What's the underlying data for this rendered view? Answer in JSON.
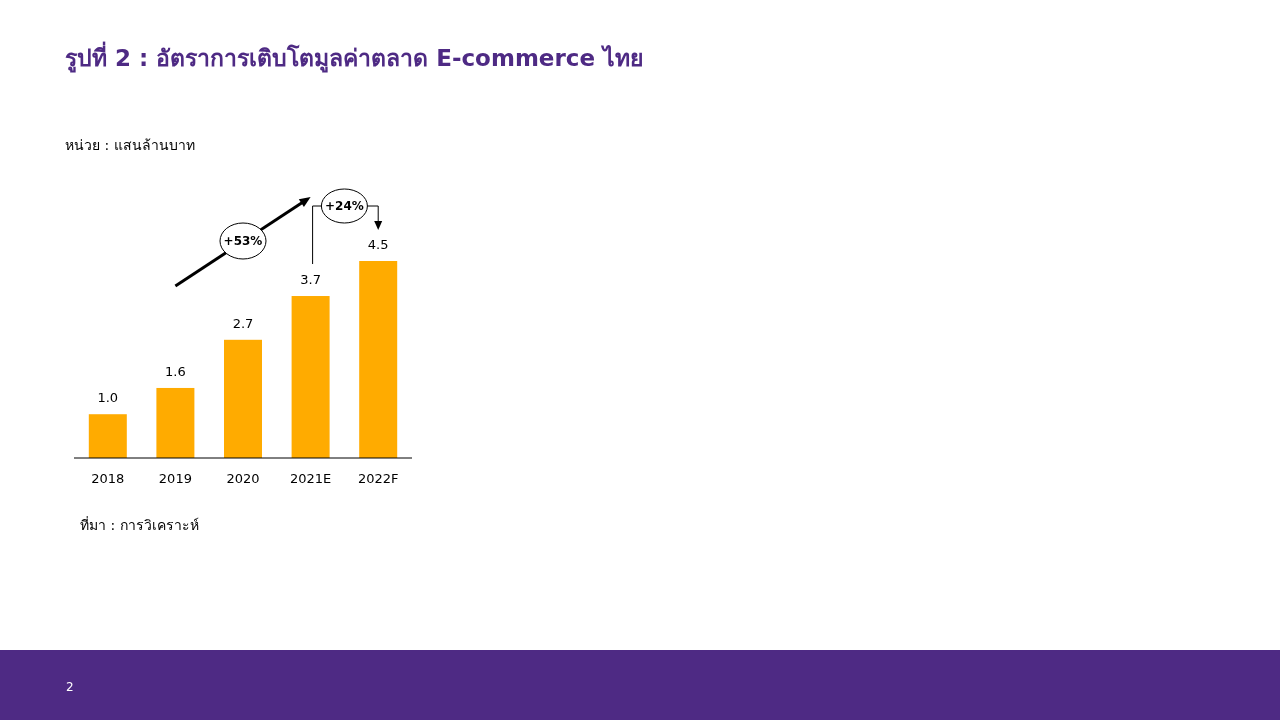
{
  "chart_data": {
    "type": "bar",
    "title": "รูปที่ 2 :  อัตราการเติบโตมูลค่าตลาด E-commerce ไทย",
    "subtitle": "หน่วย : แสนล้านบาท",
    "categories": [
      "2018",
      "2019",
      "2020",
      "2021E",
      "2022F"
    ],
    "values": [
      1.0,
      1.6,
      2.7,
      3.7,
      4.5
    ],
    "value_labels": [
      "1.0",
      "1.6",
      "2.7",
      "3.7",
      "4.5"
    ],
    "color": "#ffab00",
    "annotations": [
      "+53%",
      "+24%",
      "ที่มา : การวิเคราะห์",
      "2"
    ]
  }
}
